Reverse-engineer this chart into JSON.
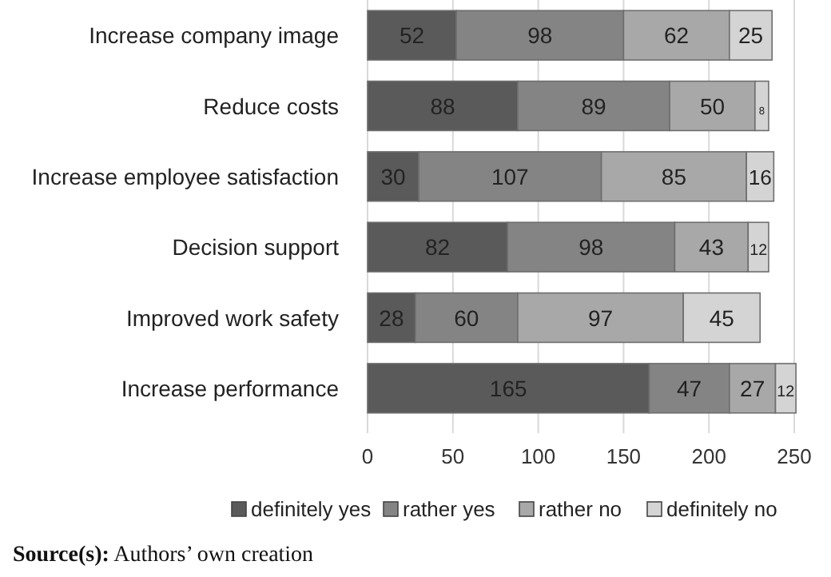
{
  "chart_data": {
    "type": "bar",
    "orientation": "horizontal",
    "stacked": true,
    "data_labels": true,
    "grid": "x",
    "legend": "bottom",
    "categories": [
      "Increase company image",
      "Reduce costs",
      "Increase employee satisfaction",
      "Decision support",
      "Improved work safety",
      "Increase performance"
    ],
    "series": [
      {
        "name": "definitely yes",
        "color": "#5a5a5a",
        "values": [
          52,
          88,
          30,
          82,
          28,
          165
        ]
      },
      {
        "name": "rather yes",
        "color": "#848484",
        "values": [
          98,
          89,
          107,
          98,
          60,
          47
        ]
      },
      {
        "name": "rather no",
        "color": "#a8a8a8",
        "values": [
          62,
          50,
          85,
          43,
          97,
          27
        ]
      },
      {
        "name": "definitely no",
        "color": "#d4d4d4",
        "values": [
          25,
          8,
          16,
          12,
          45,
          12
        ]
      }
    ],
    "xlim": [
      0,
      250
    ],
    "xticks": [
      0,
      50,
      100,
      150,
      200,
      250
    ],
    "annotations": [
      "Source(s): Authors’ own creation"
    ]
  }
}
